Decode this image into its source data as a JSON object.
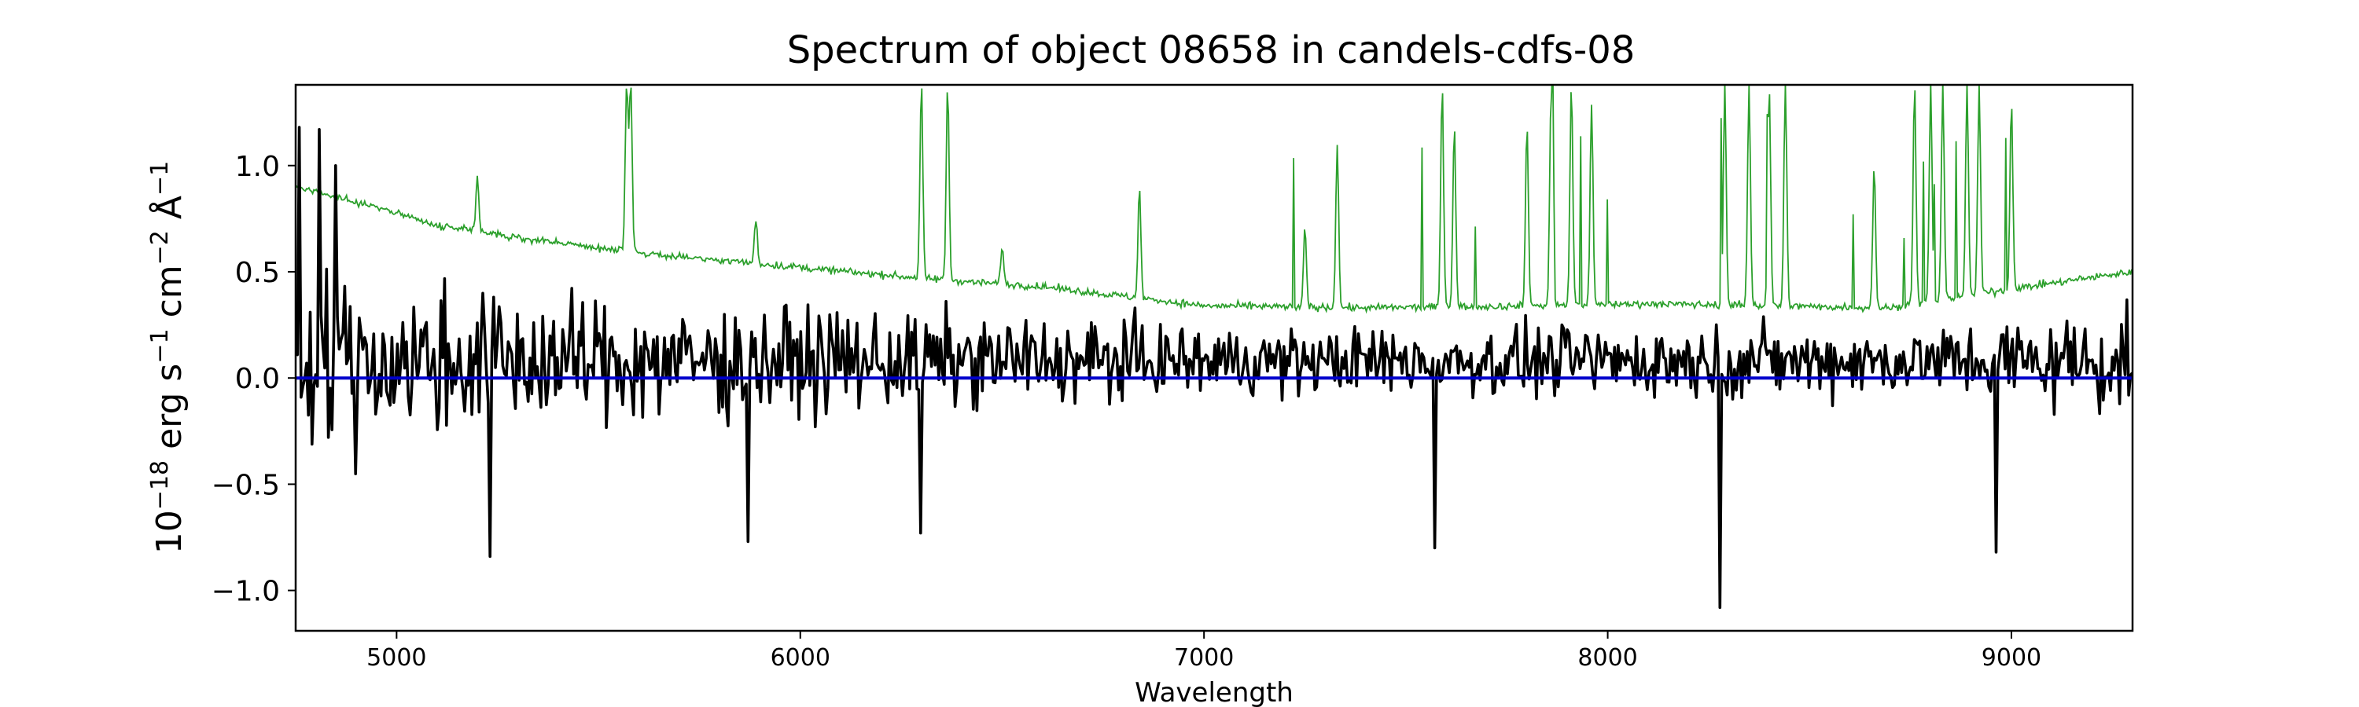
{
  "chart_data": {
    "type": "line",
    "title": "Spectrum of object 08658 in candels-cdfs-08",
    "xlabel": "Wavelength",
    "ylabel_parts": [
      "10",
      "−18",
      " erg s",
      "−1",
      " cm",
      "−2",
      " Å",
      "−1"
    ],
    "xlim": [
      4750,
      9300
    ],
    "ylim": [
      -1.19,
      1.38
    ],
    "x_ticks": [
      5000,
      6000,
      7000,
      8000,
      9000
    ],
    "x_tick_labels": [
      "5000",
      "6000",
      "7000",
      "8000",
      "9000"
    ],
    "y_ticks": [
      1.0,
      0.5,
      0.0,
      -0.5,
      -1.0
    ],
    "y_tick_labels": [
      "1.0",
      "0.5",
      "0.0",
      "−0.5",
      "−1.0"
    ],
    "grid": false,
    "series": [
      {
        "role": "noise",
        "color": "#2ca02c",
        "linewidth": "thin",
        "continuum": [
          [
            4750,
            0.9
          ],
          [
            4900,
            0.83
          ],
          [
            5100,
            0.72
          ],
          [
            5300,
            0.66
          ],
          [
            5600,
            0.59
          ],
          [
            6000,
            0.52
          ],
          [
            6300,
            0.47
          ],
          [
            6600,
            0.43
          ],
          [
            7000,
            0.34
          ],
          [
            7400,
            0.33
          ],
          [
            7800,
            0.34
          ],
          [
            8100,
            0.35
          ],
          [
            8400,
            0.34
          ],
          [
            8700,
            0.33
          ],
          [
            9000,
            0.42
          ],
          [
            9300,
            0.5
          ]
        ],
        "peaks": [
          [
            5200,
            0.95
          ],
          [
            5570,
            1.38
          ],
          [
            5580,
            1.38
          ],
          [
            5890,
            0.75
          ],
          [
            6300,
            1.38
          ],
          [
            6365,
            1.38
          ],
          [
            6500,
            0.62
          ],
          [
            6840,
            0.9
          ],
          [
            7250,
            0.7
          ],
          [
            7330,
            1.1
          ],
          [
            7590,
            1.38
          ],
          [
            7620,
            1.2
          ],
          [
            7800,
            1.2
          ],
          [
            7860,
            1.38
          ],
          [
            7910,
            1.38
          ],
          [
            7960,
            1.3
          ],
          [
            8290,
            1.38
          ],
          [
            8350,
            1.38
          ],
          [
            8400,
            1.38
          ],
          [
            8440,
            1.38
          ],
          [
            8660,
            1.0
          ],
          [
            8760,
            1.38
          ],
          [
            8800,
            1.38
          ],
          [
            8830,
            1.38
          ],
          [
            8890,
            1.38
          ],
          [
            8920,
            1.38
          ],
          [
            9000,
            1.3
          ]
        ]
      },
      {
        "role": "flux",
        "color": "#000000",
        "linewidth": "medium",
        "spikes": [
          [
            4760,
            1.18
          ],
          [
            4810,
            1.17
          ],
          [
            4850,
            1.0
          ],
          [
            5230,
            -0.84
          ],
          [
            5870,
            -0.77
          ],
          [
            6300,
            -0.73
          ],
          [
            7570,
            -0.8
          ],
          [
            8280,
            -1.08
          ],
          [
            8960,
            -0.82
          ]
        ]
      },
      {
        "role": "zero line",
        "color": "#0000cc",
        "y": 0.0
      }
    ]
  }
}
